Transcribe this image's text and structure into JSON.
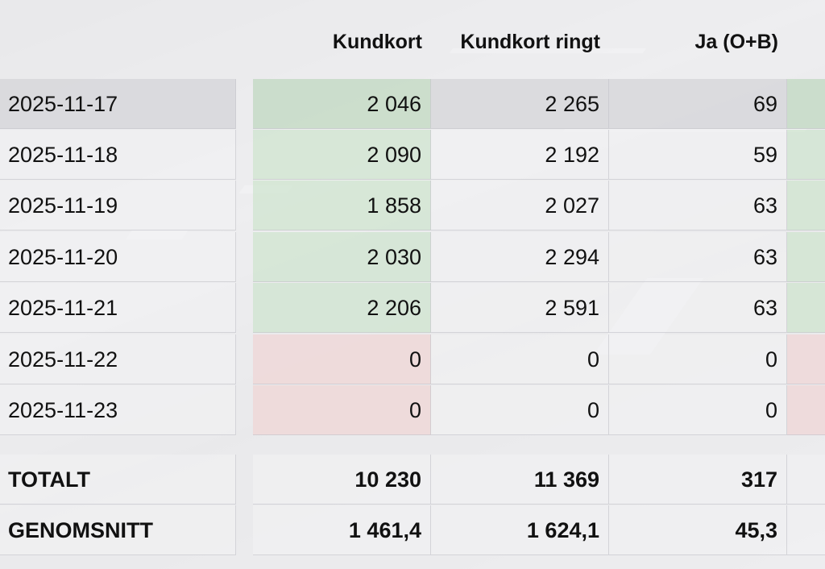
{
  "columns": {
    "col1": "Kundkort",
    "col2": "Kundkort ringt",
    "col3": "Ja (O+B)"
  },
  "rows": [
    {
      "date": "2025-11-17",
      "v1": "2 046",
      "v2": "2 265",
      "v3": "69"
    },
    {
      "date": "2025-11-18",
      "v1": "2 090",
      "v2": "2 192",
      "v3": "59"
    },
    {
      "date": "2025-11-19",
      "v1": "1 858",
      "v2": "2 027",
      "v3": "63"
    },
    {
      "date": "2025-11-20",
      "v1": "2 030",
      "v2": "2 294",
      "v3": "63"
    },
    {
      "date": "2025-11-21",
      "v1": "2 206",
      "v2": "2 591",
      "v3": "63"
    },
    {
      "date": "2025-11-22",
      "v1": "0",
      "v2": "0",
      "v3": "0"
    },
    {
      "date": "2025-11-23",
      "v1": "0",
      "v2": "0",
      "v3": "0"
    }
  ],
  "totals": {
    "label": "TOTALT",
    "v1": "10 230",
    "v2": "11 369",
    "v3": "317"
  },
  "average": {
    "label": "GENOMSNITT",
    "v1": "1 461,4",
    "v2": "1 624,1",
    "v3": "45,3"
  },
  "colors": {
    "positive": "#cde4cd",
    "zero": "#f0d4d4",
    "selected_row": "#d7d7da"
  }
}
